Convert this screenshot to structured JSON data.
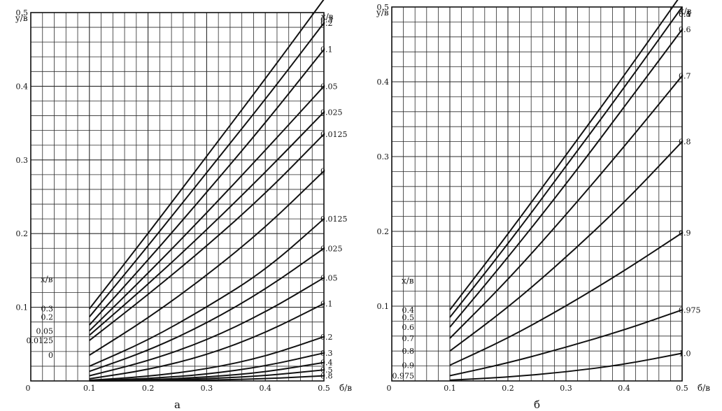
{
  "chart_data": [
    {
      "type": "line",
      "panel_label": "а",
      "xlabel": "б/в",
      "ylabel": "y/в",
      "curve_param_label": "x/в",
      "xlim": [
        0,
        0.5
      ],
      "ylim": [
        0,
        0.5
      ],
      "x_ticks": [
        "0",
        "0.1",
        "0.2",
        "0.3",
        "0.4",
        "0.5"
      ],
      "y_ticks": [
        "0.1",
        "0.2",
        "0.3",
        "0.4",
        "0.5"
      ],
      "y_tick_values": [
        0.1,
        0.2,
        0.3,
        0.4,
        0.5
      ],
      "x_tick_values": [
        0,
        0.1,
        0.2,
        0.3,
        0.4,
        0.5
      ],
      "grid": true,
      "series": [
        {
          "name": "0.3",
          "left_label": "0.3",
          "x": [
            0.1,
            0.2,
            0.3,
            0.4,
            0.5
          ],
          "y": [
            0.098,
            0.2,
            0.305,
            0.41,
            0.518
          ]
        },
        {
          "name": "0.2",
          "left_label": "0.2",
          "x": [
            0.1,
            0.2,
            0.3,
            0.4,
            0.5
          ],
          "y": [
            0.087,
            0.183,
            0.283,
            0.382,
            0.486
          ]
        },
        {
          "name": "0.1",
          "x": [
            0.1,
            0.2,
            0.3,
            0.4,
            0.5
          ],
          "y": [
            0.076,
            0.164,
            0.256,
            0.35,
            0.45
          ]
        },
        {
          "name": "0.05",
          "left_label": "0.05",
          "x": [
            0.1,
            0.2,
            0.3,
            0.4,
            0.5
          ],
          "y": [
            0.068,
            0.146,
            0.228,
            0.313,
            0.4
          ]
        },
        {
          "name": "0.025",
          "x": [
            0.1,
            0.2,
            0.3,
            0.4,
            0.5
          ],
          "y": [
            0.062,
            0.131,
            0.205,
            0.283,
            0.365
          ]
        },
        {
          "name": "0.0125",
          "left_label": "0.0125",
          "x": [
            0.1,
            0.2,
            0.3,
            0.4,
            0.5
          ],
          "y": [
            0.055,
            0.117,
            0.183,
            0.254,
            0.335
          ]
        },
        {
          "name": "0",
          "left_label": "0",
          "x": [
            0.1,
            0.2,
            0.3,
            0.4,
            0.5
          ],
          "y": [
            0.035,
            0.085,
            0.143,
            0.208,
            0.285
          ]
        },
        {
          "name": "0.0125",
          "x": [
            0.1,
            0.2,
            0.3,
            0.4,
            0.5
          ],
          "y": [
            0.02,
            0.055,
            0.1,
            0.15,
            0.22
          ]
        },
        {
          "name": "0.025",
          "x": [
            0.1,
            0.2,
            0.3,
            0.4,
            0.5
          ],
          "y": [
            0.013,
            0.041,
            0.078,
            0.124,
            0.18
          ]
        },
        {
          "name": "0.05",
          "x": [
            0.1,
            0.2,
            0.3,
            0.4,
            0.5
          ],
          "y": [
            0.007,
            0.027,
            0.055,
            0.093,
            0.14
          ]
        },
        {
          "name": "0.1",
          "x": [
            0.1,
            0.2,
            0.3,
            0.4,
            0.5
          ],
          "y": [
            0.003,
            0.015,
            0.035,
            0.065,
            0.105
          ]
        },
        {
          "name": "0.2",
          "x": [
            0.1,
            0.2,
            0.3,
            0.4,
            0.5
          ],
          "y": [
            0.001,
            0.006,
            0.016,
            0.033,
            0.06
          ]
        },
        {
          "name": "0.3",
          "x": [
            0.1,
            0.2,
            0.3,
            0.4,
            0.5
          ],
          "y": [
            0.0005,
            0.003,
            0.009,
            0.02,
            0.038
          ]
        },
        {
          "name": "0.4",
          "x": [
            0.1,
            0.2,
            0.3,
            0.4,
            0.5
          ],
          "y": [
            0.0002,
            0.0015,
            0.005,
            0.012,
            0.025
          ]
        },
        {
          "name": "0.5",
          "x": [
            0.1,
            0.2,
            0.3,
            0.4,
            0.5
          ],
          "y": [
            0.0001,
            0.0008,
            0.003,
            0.007,
            0.015
          ]
        },
        {
          "name": "0.8",
          "x": [
            0.1,
            0.2,
            0.3,
            0.4,
            0.5
          ],
          "y": [
            0.0,
            0.0003,
            0.001,
            0.003,
            0.007
          ]
        }
      ]
    },
    {
      "type": "line",
      "panel_label": "б",
      "xlabel": "б/в",
      "ylabel": "y/в",
      "curve_param_label": "x/в",
      "xlim": [
        0,
        0.5
      ],
      "ylim": [
        0,
        0.5
      ],
      "x_ticks": [
        "0",
        "0.1",
        "0.2",
        "0.3",
        "0.4",
        "0.5"
      ],
      "y_ticks": [
        "0.1",
        "0.2",
        "0.3",
        "0.4",
        "0.5"
      ],
      "y_tick_values": [
        0.1,
        0.2,
        0.3,
        0.4,
        0.5
      ],
      "x_tick_values": [
        0,
        0.1,
        0.2,
        0.3,
        0.4,
        0.5
      ],
      "grid": true,
      "series": [
        {
          "name": "0.4",
          "left_label": "0.4",
          "x": [
            0.1,
            0.2,
            0.3,
            0.4,
            0.5
          ],
          "y": [
            0.095,
            0.196,
            0.302,
            0.408,
            0.518
          ]
        },
        {
          "name": "0.5",
          "left_label": "0.5",
          "x": [
            0.1,
            0.2,
            0.3,
            0.4,
            0.5
          ],
          "y": [
            0.085,
            0.183,
            0.287,
            0.392,
            0.5
          ]
        },
        {
          "name": "0.6",
          "left_label": "0.6",
          "x": [
            0.1,
            0.2,
            0.3,
            0.4,
            0.5
          ],
          "y": [
            0.072,
            0.165,
            0.263,
            0.366,
            0.47
          ]
        },
        {
          "name": "0.7",
          "left_label": "0.7",
          "x": [
            0.1,
            0.2,
            0.3,
            0.4,
            0.5
          ],
          "y": [
            0.057,
            0.135,
            0.222,
            0.313,
            0.408
          ]
        },
        {
          "name": "0.8",
          "left_label": "0.8",
          "x": [
            0.1,
            0.2,
            0.3,
            0.4,
            0.5
          ],
          "y": [
            0.04,
            0.098,
            0.165,
            0.238,
            0.32
          ]
        },
        {
          "name": "0.9",
          "left_label": "0.9",
          "x": [
            0.1,
            0.2,
            0.3,
            0.4,
            0.5
          ],
          "y": [
            0.021,
            0.057,
            0.1,
            0.147,
            0.198
          ]
        },
        {
          "name": "0.975",
          "left_label": "0.975",
          "x": [
            0.1,
            0.2,
            0.3,
            0.4,
            0.5
          ],
          "y": [
            0.007,
            0.024,
            0.045,
            0.068,
            0.095
          ]
        },
        {
          "name": "1.0",
          "x": [
            0.1,
            0.2,
            0.3,
            0.4,
            0.5
          ],
          "y": [
            0.001,
            0.005,
            0.012,
            0.022,
            0.037
          ]
        }
      ]
    }
  ]
}
